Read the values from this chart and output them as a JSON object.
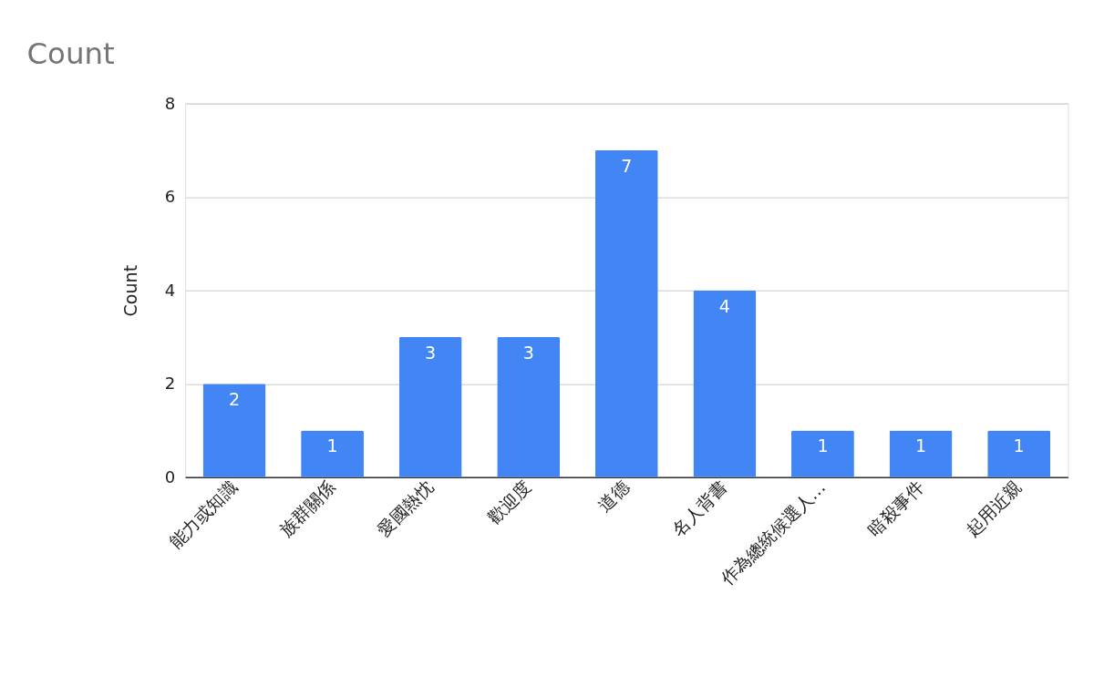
{
  "chart_data": {
    "type": "bar",
    "title": "Count",
    "ylabel": "Count",
    "categories": [
      "能力或知識",
      "族群關係",
      "愛國熱忱",
      "歡迎度",
      "道德",
      "名人背書",
      "作為總統候選人…",
      "暗殺事件",
      "起用近親"
    ],
    "values": [
      2,
      1,
      3,
      3,
      7,
      4,
      1,
      1,
      1
    ],
    "color": "#4285f4",
    "ylim": [
      0,
      8
    ],
    "yticks": [
      0,
      2,
      4,
      6,
      8
    ],
    "grid": "y",
    "data_labels": true
  }
}
